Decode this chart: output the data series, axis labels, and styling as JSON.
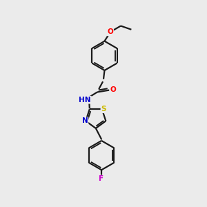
{
  "bg_color": "#ebebeb",
  "bond_color": "#1a1a1a",
  "line_width": 1.6,
  "atom_colors": {
    "O": "#ff0000",
    "N": "#0000cc",
    "S": "#ccbb00",
    "F": "#cc00cc",
    "H": "#888888"
  },
  "font_size": 7.5
}
